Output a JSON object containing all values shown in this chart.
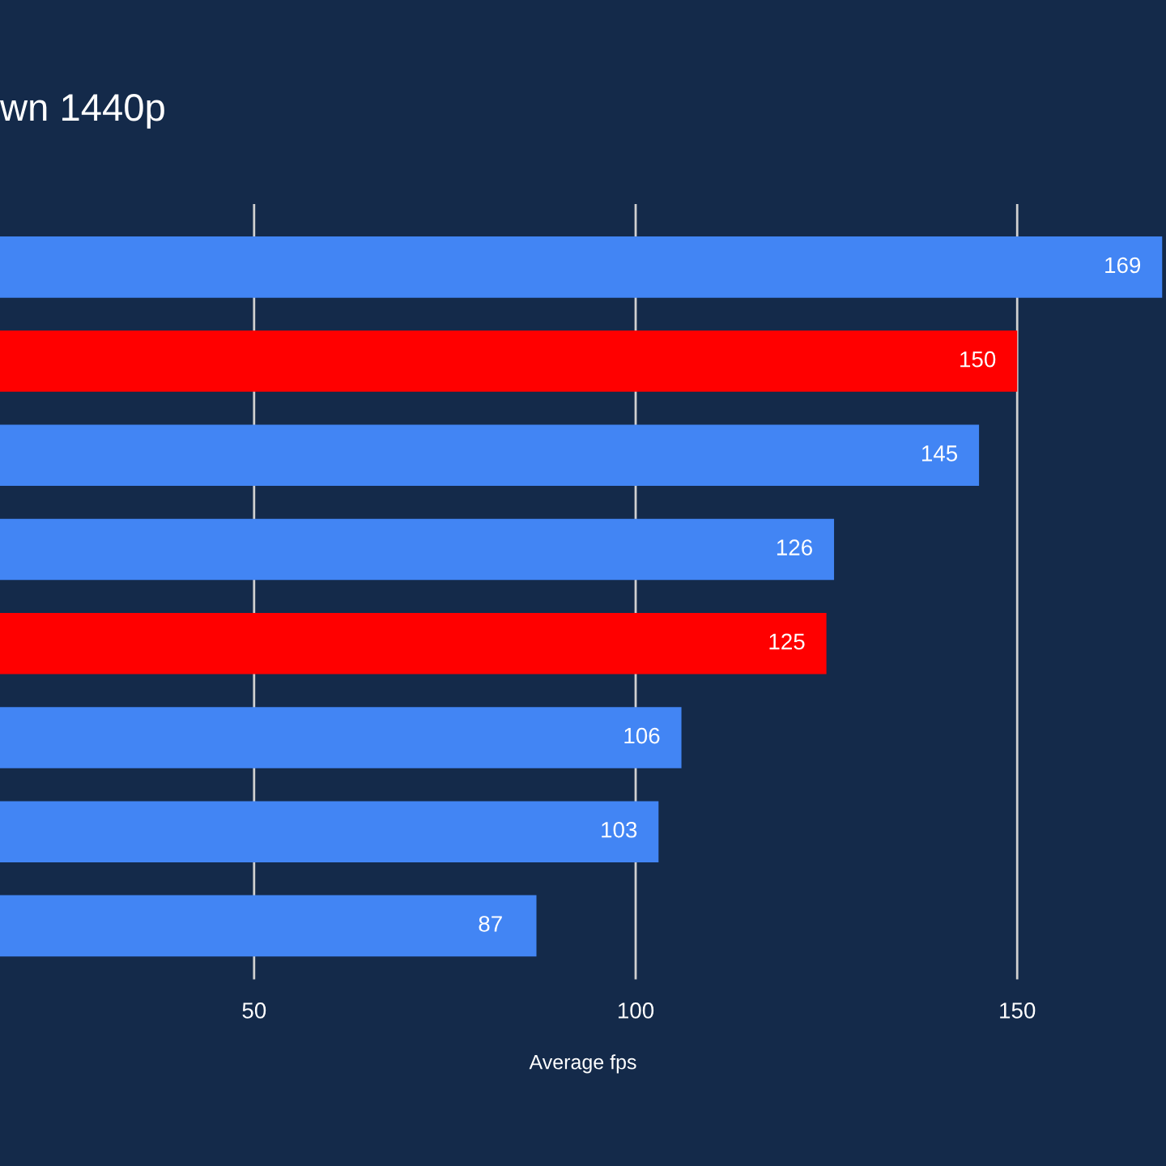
{
  "chart_data": {
    "type": "bar",
    "orientation": "horizontal",
    "title": "wn 1440p",
    "xlabel": "Average fps",
    "categories": [
      null,
      null,
      null,
      null,
      null,
      null,
      null,
      null
    ],
    "values": [
      169,
      150,
      145,
      126,
      125,
      106,
      103,
      87
    ],
    "colors": [
      "#4285f4",
      "#ff0000",
      "#4285f4",
      "#4285f4",
      "#ff0000",
      "#4285f4",
      "#4285f4",
      "#4285f4"
    ],
    "xlim": [
      16.7,
      169.5
    ],
    "xticks": [
      50,
      100,
      150
    ],
    "grid": "x",
    "data_labels": true
  }
}
